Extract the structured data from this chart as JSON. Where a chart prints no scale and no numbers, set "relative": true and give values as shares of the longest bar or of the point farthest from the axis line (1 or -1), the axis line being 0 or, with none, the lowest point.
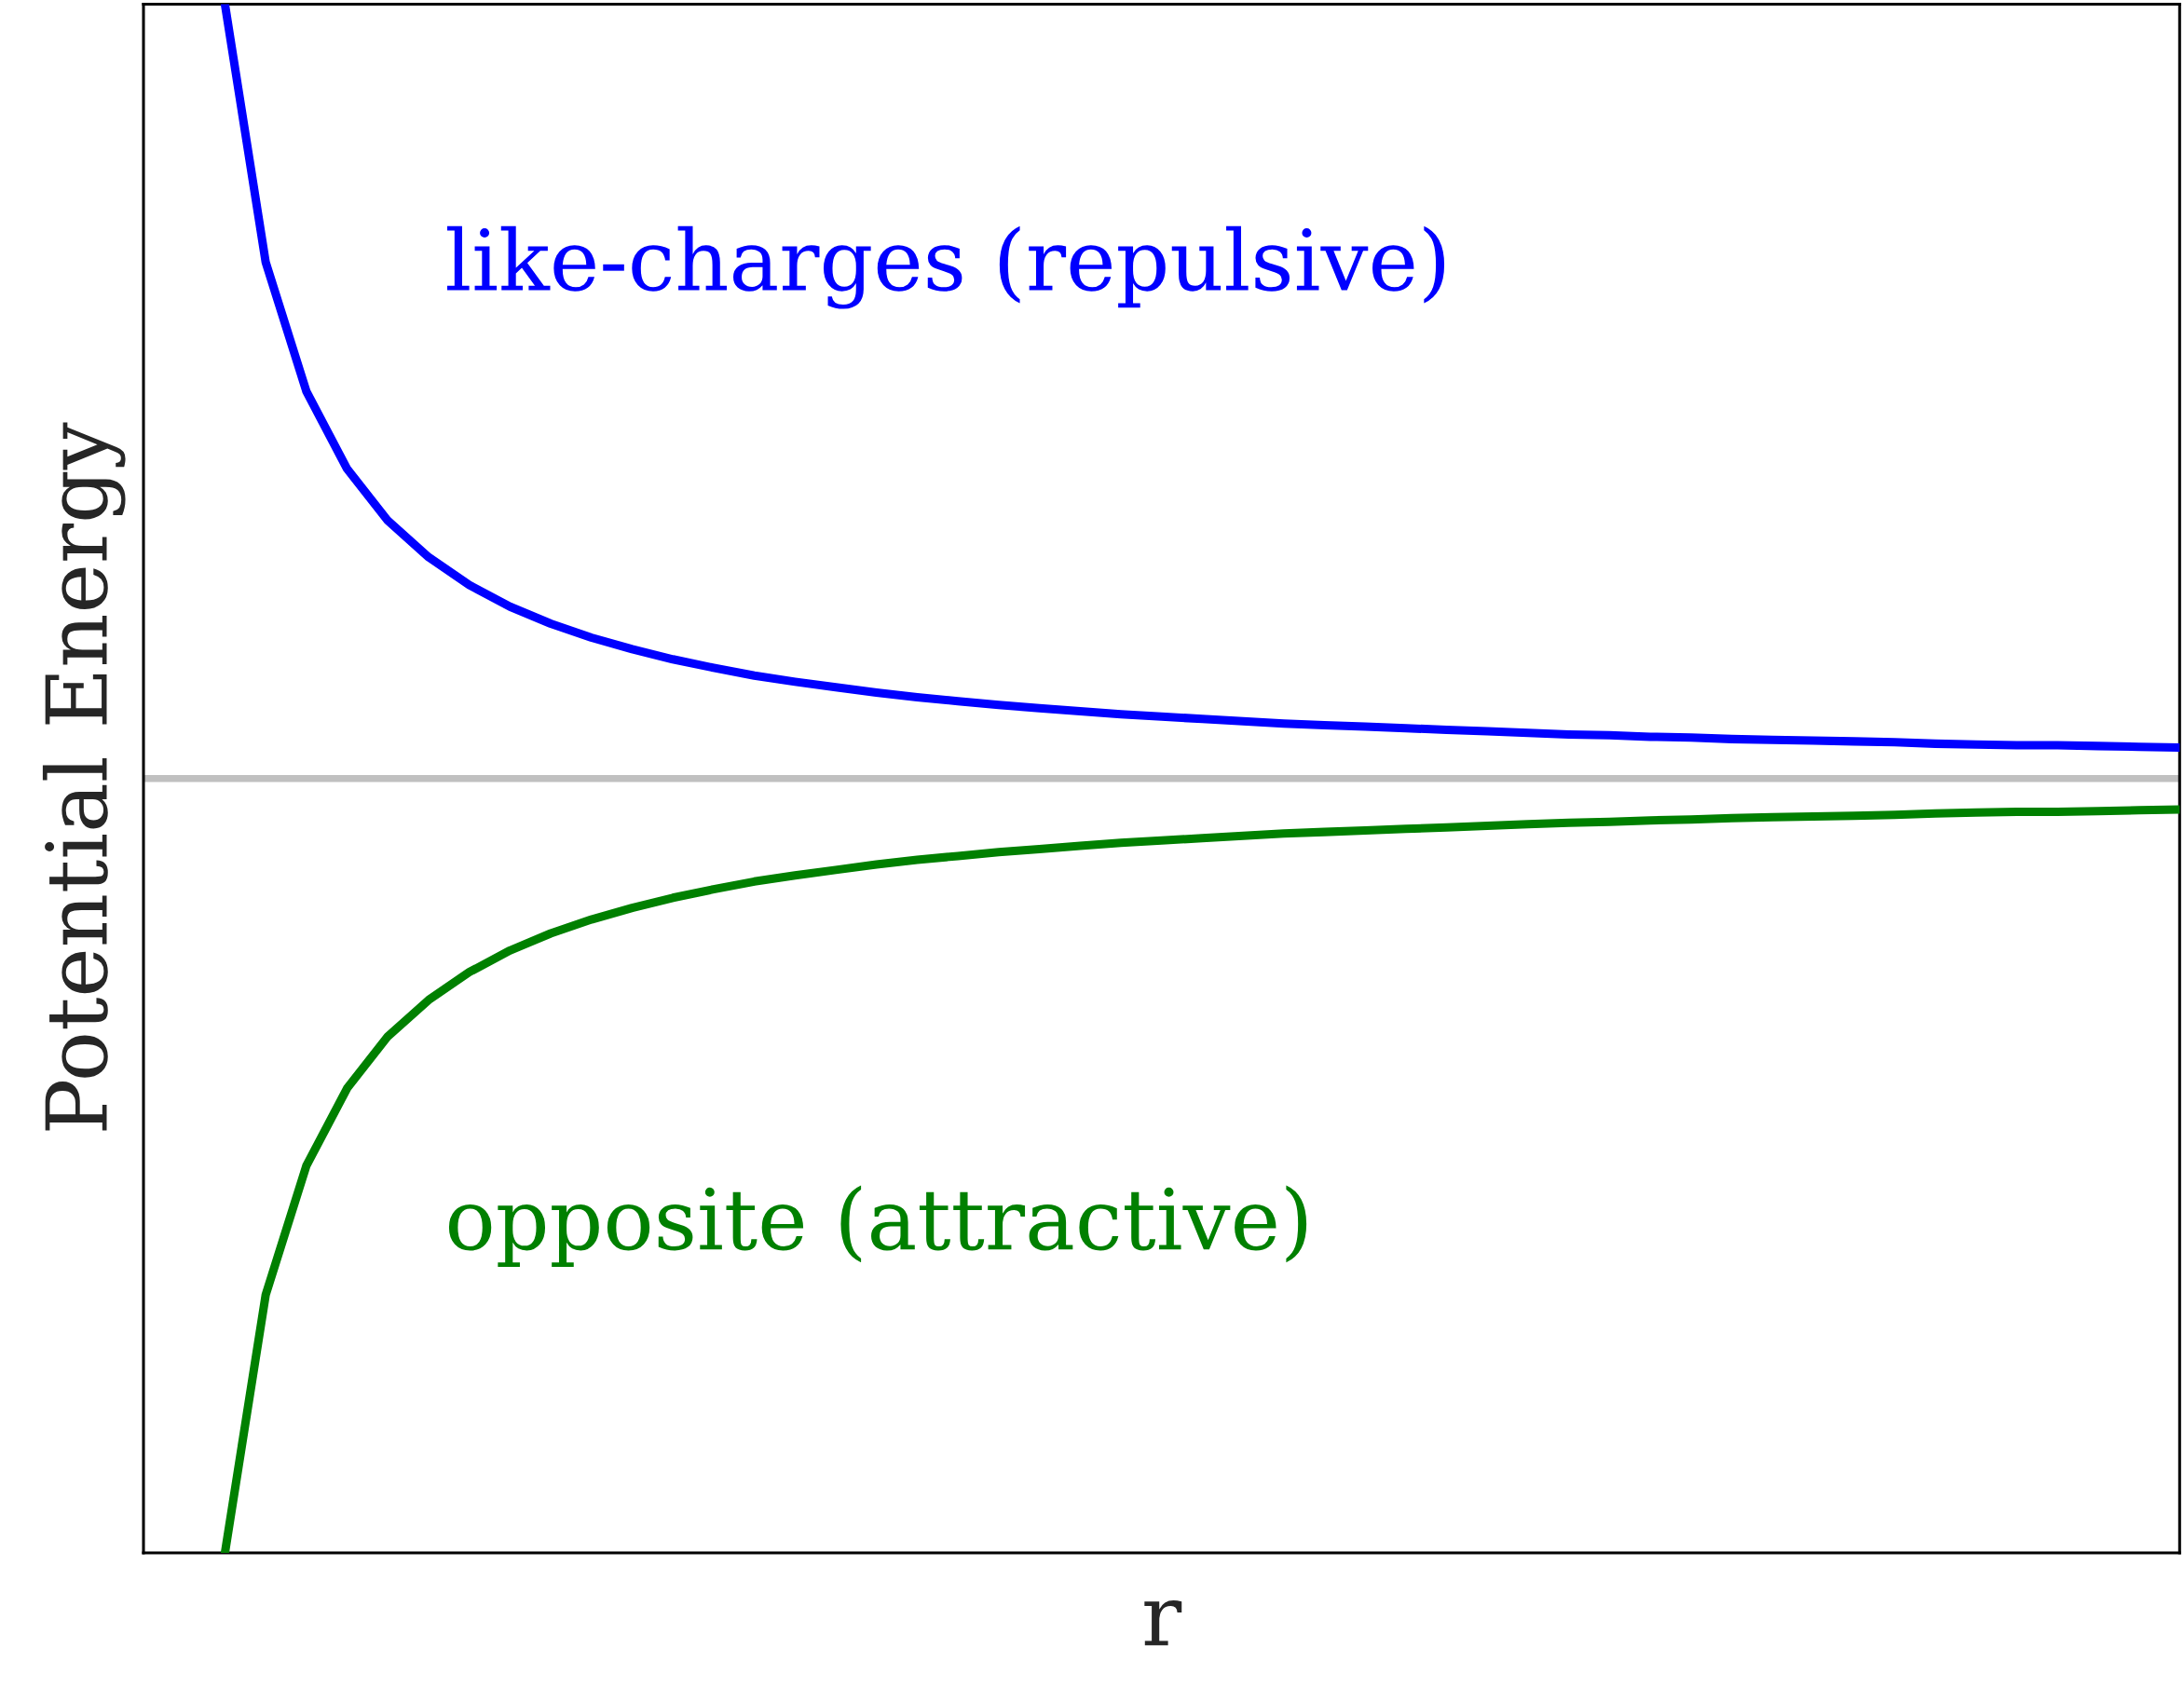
{
  "chart_data": {
    "type": "line",
    "relative": true,
    "xlabel": "r",
    "ylabel": "Potential Energy",
    "tick_labels": false,
    "categories": [
      null,
      null,
      null,
      null,
      null,
      null,
      null,
      null,
      null,
      null,
      null,
      null,
      null,
      null,
      null,
      null,
      null,
      null,
      null,
      null,
      null,
      null,
      null,
      null,
      null,
      null,
      null,
      null,
      null,
      null,
      null,
      null,
      null,
      null,
      null,
      null,
      null,
      null,
      null,
      null,
      null,
      null,
      null,
      null,
      null,
      null,
      null,
      null,
      null
    ],
    "series": [
      {
        "name": "like-charges (repulsive)",
        "color": "#0000ff",
        "values": [
          1,
          0.667,
          0.5,
          0.4,
          0.333,
          0.286,
          0.25,
          0.222,
          0.2,
          0.182,
          0.167,
          0.154,
          0.143,
          0.133,
          0.125,
          0.118,
          0.111,
          0.105,
          0.1,
          0.095,
          0.091,
          0.087,
          0.083,
          0.08,
          0.077,
          0.074,
          0.071,
          0.069,
          0.067,
          0.065,
          0.063,
          0.061,
          0.059,
          0.057,
          0.056,
          0.054,
          0.053,
          0.051,
          0.05,
          0.049,
          0.048,
          0.047,
          0.045,
          0.044,
          0.043,
          0.043,
          0.042,
          0.041,
          0.04
        ]
      },
      {
        "name": "opposite (attractive)",
        "color": "#008000",
        "values": [
          -1,
          -0.667,
          -0.5,
          -0.4,
          -0.333,
          -0.286,
          -0.25,
          -0.222,
          -0.2,
          -0.182,
          -0.167,
          -0.154,
          -0.143,
          -0.133,
          -0.125,
          -0.118,
          -0.111,
          -0.105,
          -0.1,
          -0.095,
          -0.091,
          -0.087,
          -0.083,
          -0.08,
          -0.077,
          -0.074,
          -0.071,
          -0.069,
          -0.067,
          -0.065,
          -0.063,
          -0.061,
          -0.059,
          -0.057,
          -0.056,
          -0.054,
          -0.053,
          -0.051,
          -0.05,
          -0.049,
          -0.048,
          -0.047,
          -0.045,
          -0.044,
          -0.043,
          -0.043,
          -0.042,
          -0.041,
          -0.04
        ]
      }
    ],
    "ref_lines": [
      {
        "axis": "y",
        "value": 0,
        "color": "#c0c0c0"
      }
    ]
  }
}
